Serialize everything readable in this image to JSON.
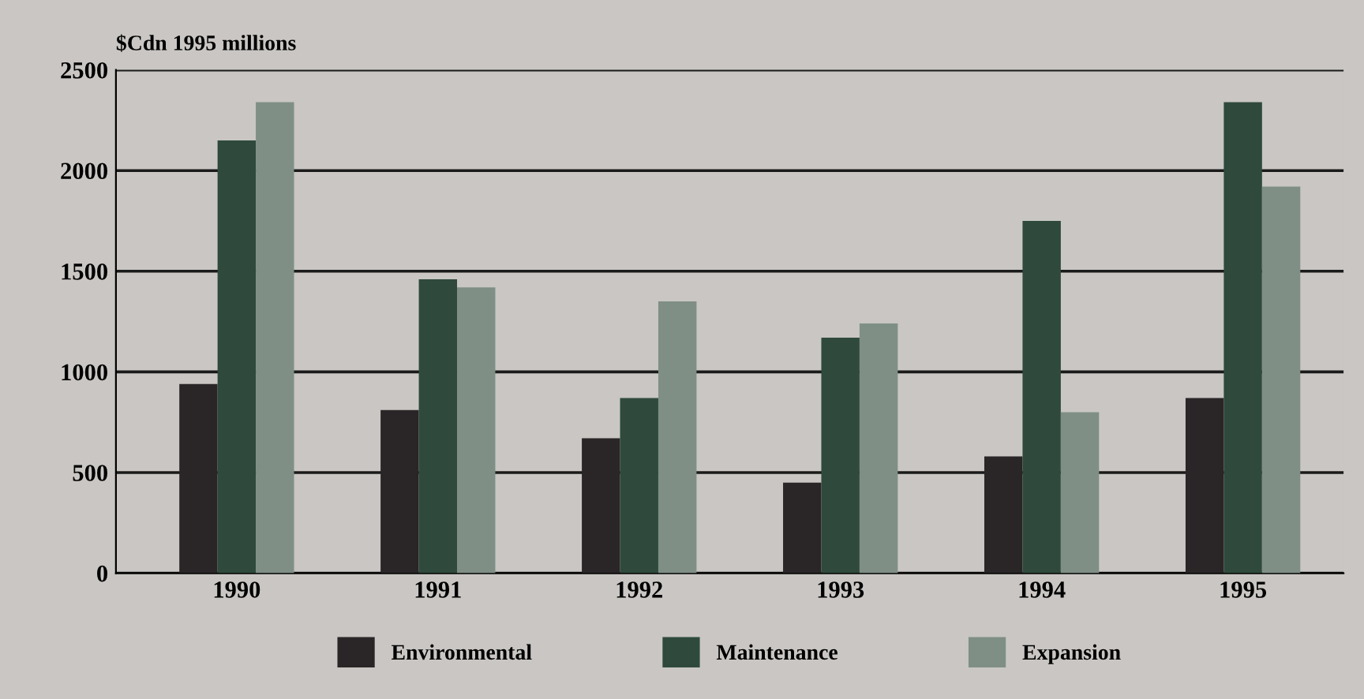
{
  "chart_data": {
    "type": "bar",
    "ylabel": "$Cdn 1995 millions",
    "categories": [
      "1990",
      "1991",
      "1992",
      "1993",
      "1994",
      "1995"
    ],
    "series": [
      {
        "name": "Environmental",
        "color": "#2a2527",
        "values": [
          940,
          810,
          670,
          450,
          580,
          870
        ]
      },
      {
        "name": "Maintenance",
        "color": "#2f4a3c",
        "values": [
          2150,
          1460,
          870,
          1170,
          1750,
          2340
        ]
      },
      {
        "name": "Expansion",
        "color": "#7f8f86",
        "values": [
          2340,
          1420,
          1350,
          1240,
          800,
          1920
        ]
      }
    ],
    "ylim": [
      0,
      2500
    ],
    "yticks": [
      0,
      500,
      1000,
      1500,
      2000,
      2500
    ],
    "grid": "y",
    "legend": "bottom"
  }
}
